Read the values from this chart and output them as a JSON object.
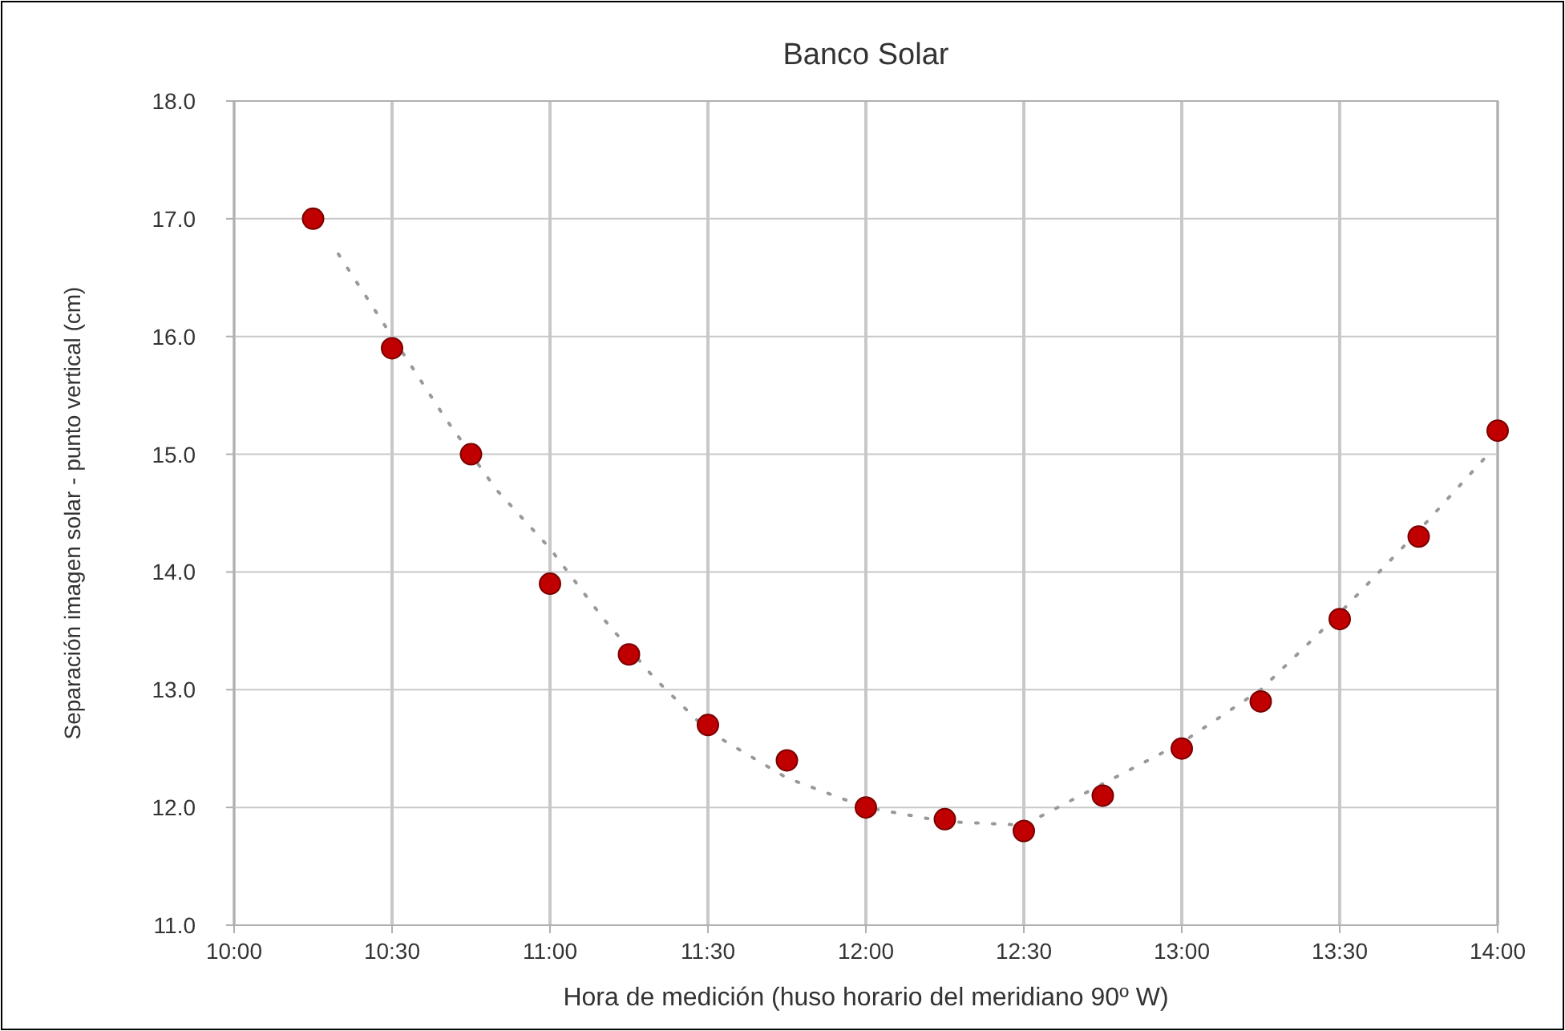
{
  "chart_data": {
    "type": "scatter",
    "title": "Banco Solar",
    "xlabel": "Hora de medición (huso horario del meridiano 90º W)",
    "ylabel": "Separación imagen solar - punto vertical (cm)",
    "xlim": [
      10,
      14
    ],
    "xticks": [
      {
        "value": 10,
        "label": "10:00"
      },
      {
        "value": 10.5,
        "label": "10:30"
      },
      {
        "value": 11,
        "label": "11:00"
      },
      {
        "value": 11.5,
        "label": "11:30"
      },
      {
        "value": 12,
        "label": "12:00"
      },
      {
        "value": 12.5,
        "label": "12:30"
      },
      {
        "value": 13,
        "label": "13:00"
      },
      {
        "value": 13.5,
        "label": "13:30"
      },
      {
        "value": 14,
        "label": "14:00"
      }
    ],
    "ylim": [
      11,
      18
    ],
    "yticks": [
      {
        "value": 11,
        "label": "11.0"
      },
      {
        "value": 12,
        "label": "12.0"
      },
      {
        "value": 13,
        "label": "13.0"
      },
      {
        "value": 14,
        "label": "14.0"
      },
      {
        "value": 15,
        "label": "15.0"
      },
      {
        "value": 16,
        "label": "16.0"
      },
      {
        "value": 17,
        "label": "17.0"
      },
      {
        "value": 18,
        "label": "18.0"
      }
    ],
    "grid": true,
    "series": [
      {
        "color": "#c00000",
        "marker": "circle",
        "x": [
          10.25,
          10.5,
          10.75,
          11,
          11.25,
          11.5,
          11.75,
          12,
          12.25,
          12.5,
          12.75,
          13,
          13.25,
          13.5,
          13.75,
          14
        ],
        "values": [
          17.0,
          15.9,
          15.0,
          13.9,
          13.3,
          12.7,
          12.4,
          12.0,
          11.9,
          11.8,
          12.1,
          12.5,
          12.9,
          13.6,
          14.3,
          15.2
        ]
      },
      {
        "type": "line",
        "color": "#999999",
        "marker": "none",
        "line_style": "dotted",
        "x": [
          10.33,
          10.5,
          10.67,
          10.83,
          11,
          11.17,
          11.33,
          11.5,
          11.75,
          12,
          12.25,
          12.5,
          12.75,
          13,
          13.25,
          13.5,
          13.75,
          13.97
        ],
        "values": [
          16.7,
          16.0,
          15.3,
          14.7,
          14.2,
          13.6,
          13.1,
          12.65,
          12.25,
          12.0,
          11.88,
          11.85,
          12.2,
          12.55,
          13.0,
          13.65,
          14.35,
          15.0
        ]
      }
    ]
  }
}
